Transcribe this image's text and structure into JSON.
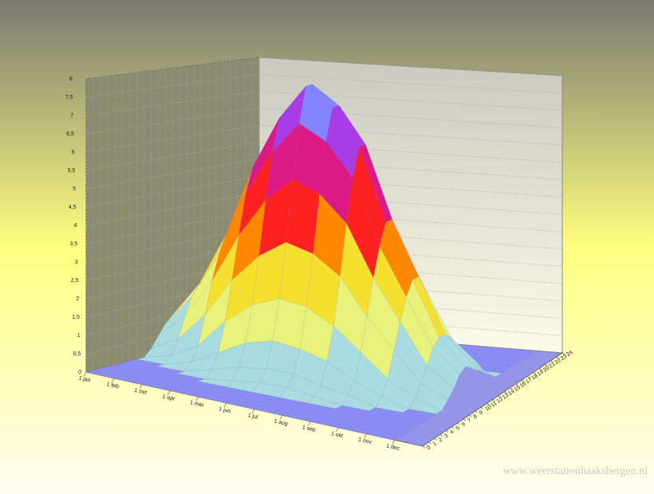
{
  "chart_data": {
    "type": "surface",
    "categories": [
      "1 jan",
      "1 feb",
      "1 mrt",
      "1 apr",
      "1 mei",
      "1 jun",
      "1 jul",
      "1 aug",
      "1 sep",
      "1 okt",
      "1 nov",
      "1 dec"
    ],
    "y": [
      0,
      1,
      2,
      3,
      4,
      5,
      6,
      7,
      8,
      9,
      10,
      11,
      12,
      13,
      14,
      15,
      16,
      17,
      18,
      19,
      20,
      21,
      22,
      23,
      24
    ],
    "values": [
      [
        0,
        0,
        0,
        0,
        0,
        0,
        0,
        0,
        0,
        0.2,
        0.5,
        0.8,
        1,
        1,
        0.8,
        0.5,
        0.2,
        0,
        0,
        0,
        0,
        0,
        0,
        0,
        0
      ],
      [
        0,
        0,
        0,
        0,
        0,
        0,
        0,
        0,
        0.2,
        0.6,
        1.2,
        1.7,
        2,
        2,
        1.7,
        1.2,
        0.6,
        0.2,
        0,
        0,
        0,
        0,
        0,
        0,
        0
      ],
      [
        0,
        0,
        0,
        0,
        0,
        0,
        0,
        0.2,
        0.6,
        1.4,
        2.3,
        3,
        3.5,
        3.5,
        3,
        2.3,
        1.4,
        0.6,
        0.2,
        0,
        0,
        0,
        0,
        0,
        0
      ],
      [
        0,
        0,
        0,
        0,
        0,
        0,
        0.2,
        0.6,
        1.4,
        2.5,
        3.7,
        4.8,
        5.5,
        5.5,
        4.8,
        3.7,
        2.5,
        1.4,
        0.6,
        0.2,
        0,
        0,
        0,
        0,
        0
      ],
      [
        0,
        0,
        0,
        0,
        0,
        0.1,
        0.4,
        1,
        2,
        3.3,
        4.8,
        6.1,
        7,
        7,
        6.1,
        4.8,
        3.3,
        2,
        1,
        0.4,
        0.1,
        0,
        0,
        0,
        0
      ],
      [
        0,
        0,
        0,
        0,
        0,
        0.2,
        0.5,
        1.2,
        2.3,
        3.8,
        5.5,
        7,
        8,
        8,
        7,
        5.5,
        3.8,
        2.3,
        1.2,
        0.5,
        0.2,
        0,
        0,
        0,
        0
      ],
      [
        0,
        0,
        0,
        0,
        0,
        0.2,
        0.5,
        1.1,
        2.2,
        3.6,
        5.2,
        6.6,
        7.5,
        7.5,
        6.6,
        5.2,
        3.6,
        2.2,
        1.1,
        0.5,
        0.2,
        0,
        0,
        0,
        0
      ],
      [
        0,
        0,
        0,
        0,
        0,
        0.1,
        0.3,
        0.9,
        1.8,
        3.1,
        4.5,
        5.7,
        6.5,
        6.5,
        5.7,
        4.5,
        3.1,
        1.8,
        0.9,
        0.3,
        0.1,
        0,
        0,
        0,
        0
      ],
      [
        0,
        0,
        0,
        0,
        0,
        0,
        0.2,
        0.5,
        1.2,
        2.1,
        3.1,
        3.9,
        4.5,
        4.5,
        3.9,
        3.1,
        2.1,
        1.2,
        0.5,
        0.2,
        0,
        0,
        0,
        0,
        0
      ],
      [
        0,
        0,
        0,
        0,
        0,
        0,
        0,
        0.2,
        0.6,
        1.3,
        2,
        2.6,
        3,
        3,
        2.6,
        2,
        1.3,
        0.6,
        0.2,
        0,
        0,
        0,
        0,
        0,
        0
      ],
      [
        0,
        0,
        0,
        0,
        0,
        0,
        0,
        0,
        0.2,
        0.5,
        0.9,
        1.3,
        1.5,
        1.5,
        1.3,
        0.9,
        0.5,
        0.2,
        0,
        0,
        0,
        0,
        0,
        0,
        0
      ],
      [
        0,
        0,
        0,
        0,
        0,
        0,
        0,
        0,
        0,
        0.2,
        0.4,
        0.7,
        0.8,
        0.8,
        0.7,
        0.4,
        0.2,
        0,
        0,
        0,
        0,
        0,
        0,
        0,
        0
      ]
    ],
    "zlim": [
      0,
      8
    ],
    "zticks": [
      0,
      {
        "value": 0.5,
        "label": "0,5"
      },
      1,
      {
        "value": 1.5,
        "label": "1,5"
      },
      2,
      {
        "value": 2.5,
        "label": "2,5"
      },
      3,
      {
        "value": 3.5,
        "label": "3,5"
      },
      4,
      {
        "value": 4.5,
        "label": "4,5"
      },
      5,
      {
        "value": 5.5,
        "label": "5,5"
      },
      6,
      {
        "value": 6.5,
        "label": "6,5"
      },
      7,
      {
        "value": 7.5,
        "label": "7,5"
      },
      8
    ],
    "grid": true,
    "watermark": "www.weerstationhaaksbergen.nl"
  }
}
